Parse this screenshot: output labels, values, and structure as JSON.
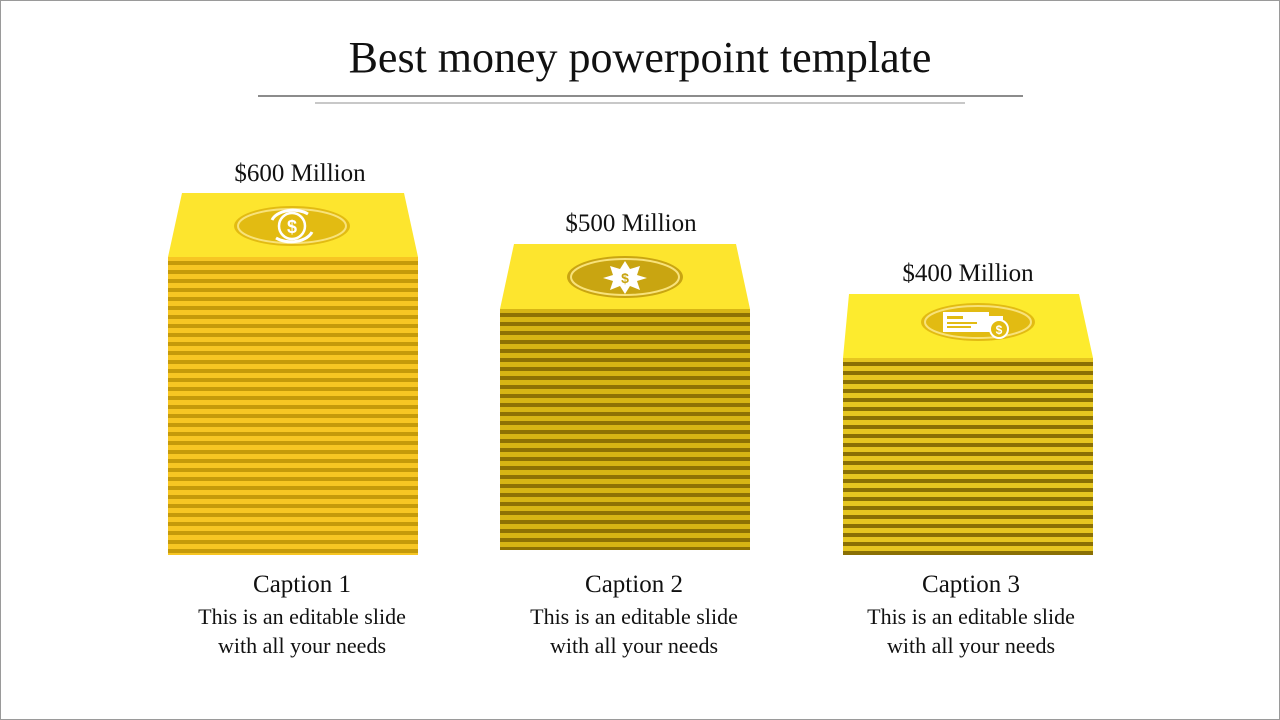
{
  "slide": {
    "title": "Best money powerpoint template"
  },
  "stacks": [
    {
      "amount": "$600 Million",
      "icon": "dollar-circle-arrows-icon",
      "caption": "Caption 1",
      "desc_line1": "This is an editable slide",
      "desc_line2": "with all your needs"
    },
    {
      "amount": "$500 Million",
      "icon": "dollar-star-badge-icon",
      "caption": "Caption 2",
      "desc_line1": "This is an editable slide",
      "desc_line2": "with all your needs"
    },
    {
      "amount": "$400 Million",
      "icon": "cheque-icon",
      "caption": "Caption 3",
      "desc_line1": "This is an editable slide",
      "desc_line2": "with all your needs"
    }
  ],
  "colors": {
    "top_face": "#FDE52E",
    "stripe_light_1": "#F7C623",
    "stripe_dark_1": "#C59A0A",
    "stripe_light_2": "#D7B514",
    "stripe_dark_2": "#8E7204",
    "stripe_light_3": "#E6C620",
    "stripe_dark_3": "#8A7004",
    "badge": "#E2BB12",
    "badge_ring": "#F7DE6A"
  }
}
